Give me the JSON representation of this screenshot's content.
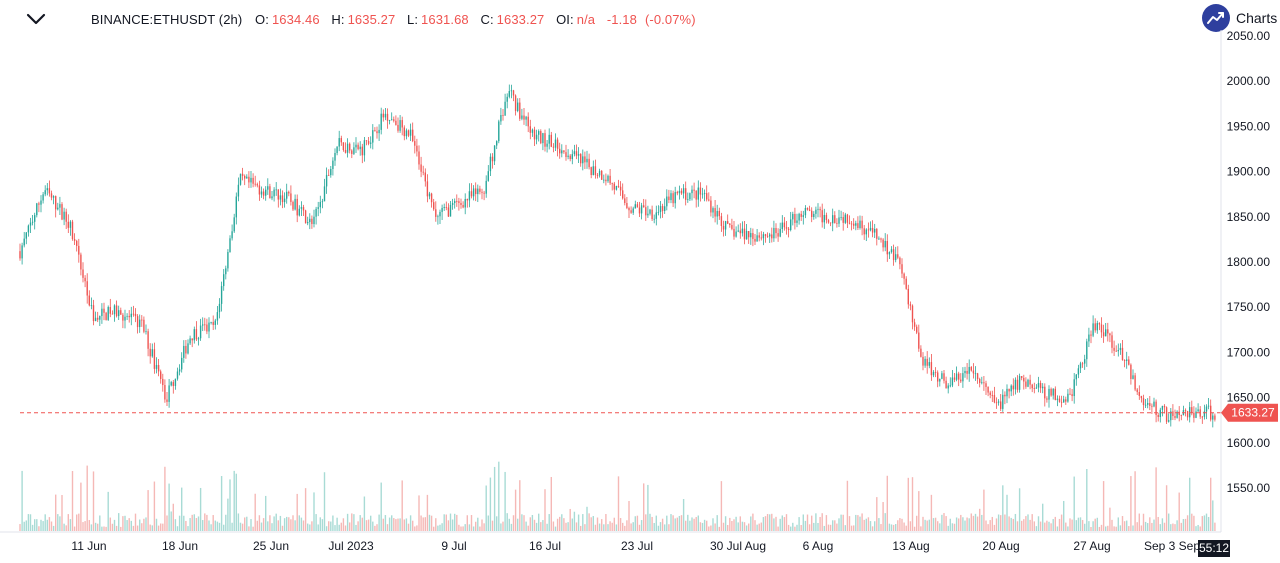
{
  "legend": {
    "symbol": "BINANCE:ETHUSDT (2h)",
    "open_label": "O:",
    "open": "1634.46",
    "high_label": "H:",
    "high": "1635.27",
    "low_label": "L:",
    "low": "1631.68",
    "close_label": "C:",
    "close": "1633.27",
    "oi_label": "OI:",
    "oi": "n/a",
    "change": "-1.18",
    "change_pct": "(-0.07%)"
  },
  "brand": {
    "name": "Charts",
    "icon": "trend-up-icon"
  },
  "timer": "55:12",
  "colors": {
    "up": "#26a69a",
    "down": "#ef5350",
    "price_line": "#ef5350",
    "axis_text": "#131722"
  },
  "chart_data": {
    "type": "candlestick",
    "symbol": "BINANCE:ETHUSDT",
    "interval": "2h",
    "y_ticks": [
      "2050.00",
      "2000.00",
      "1950.00",
      "1900.00",
      "1850.00",
      "1800.00",
      "1750.00",
      "1700.00",
      "1650.00",
      "1600.00",
      "1550.00"
    ],
    "ylim": [
      1505,
      2055
    ],
    "x_ticks": [
      "11 Jun",
      "18 Jun",
      "25 Jun",
      "Jul 2023",
      "9 Jul",
      "16 Jul",
      "23 Jul",
      "30 Jul Aug",
      "6 Aug",
      "13 Aug",
      "20 Aug",
      "27 Aug",
      "Sep 3 Sep"
    ],
    "last_price": "1633.27",
    "approx_close_path": [
      {
        "t": "6 Jun",
        "close": 1812
      },
      {
        "t": "7 Jun",
        "close": 1880
      },
      {
        "t": "8 Jun",
        "close": 1845
      },
      {
        "t": "10 Jun",
        "close": 1740
      },
      {
        "t": "12 Jun",
        "close": 1745
      },
      {
        "t": "14 Jun",
        "close": 1730
      },
      {
        "t": "15 Jun",
        "close": 1650
      },
      {
        "t": "17 Jun",
        "close": 1720
      },
      {
        "t": "19 Jun",
        "close": 1730
      },
      {
        "t": "21 Jun",
        "close": 1890
      },
      {
        "t": "23 Jun",
        "close": 1880
      },
      {
        "t": "26 Jun",
        "close": 1870
      },
      {
        "t": "28 Jun",
        "close": 1840
      },
      {
        "t": "30 Jun",
        "close": 1930
      },
      {
        "t": "Jul 2023",
        "close": 1925
      },
      {
        "t": "3 Jul",
        "close": 1965
      },
      {
        "t": "5 Jul",
        "close": 1940
      },
      {
        "t": "6 Jul",
        "close": 1850
      },
      {
        "t": "9 Jul",
        "close": 1865
      },
      {
        "t": "12 Jul",
        "close": 1880
      },
      {
        "t": "13 Jul",
        "close": 1990
      },
      {
        "t": "14 Jul",
        "close": 1940
      },
      {
        "t": "16 Jul",
        "close": 1930
      },
      {
        "t": "18 Jul",
        "close": 1910
      },
      {
        "t": "20 Jul",
        "close": 1895
      },
      {
        "t": "23 Jul",
        "close": 1860
      },
      {
        "t": "25 Jul",
        "close": 1855
      },
      {
        "t": "28 Jul",
        "close": 1875
      },
      {
        "t": "30 Jul",
        "close": 1875
      },
      {
        "t": "1 Aug",
        "close": 1835
      },
      {
        "t": "4 Aug",
        "close": 1830
      },
      {
        "t": "6 Aug",
        "close": 1830
      },
      {
        "t": "8 Aug",
        "close": 1855
      },
      {
        "t": "10 Aug",
        "close": 1850
      },
      {
        "t": "13 Aug",
        "close": 1850
      },
      {
        "t": "15 Aug",
        "close": 1830
      },
      {
        "t": "16 Aug",
        "close": 1800
      },
      {
        "t": "17 Aug",
        "close": 1690
      },
      {
        "t": "18 Aug",
        "close": 1665
      },
      {
        "t": "20 Aug",
        "close": 1680
      },
      {
        "t": "22 Aug",
        "close": 1640
      },
      {
        "t": "23 Aug",
        "close": 1670
      },
      {
        "t": "25 Aug",
        "close": 1655
      },
      {
        "t": "27 Aug",
        "close": 1650
      },
      {
        "t": "29 Aug",
        "close": 1730
      },
      {
        "t": "30 Aug",
        "close": 1705
      },
      {
        "t": "31 Aug",
        "close": 1645
      },
      {
        "t": "1 Sep",
        "close": 1630
      },
      {
        "t": "3 Sep",
        "close": 1635
      },
      {
        "t": "4 Sep",
        "close": 1633
      }
    ],
    "grid": false,
    "volume_pane": true
  }
}
